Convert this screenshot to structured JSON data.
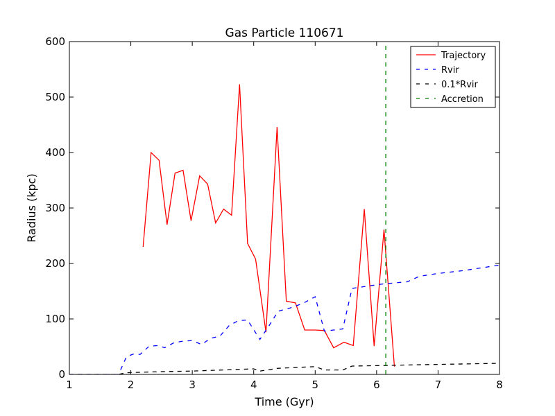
{
  "chart_data": {
    "type": "line",
    "title": "Gas Particle 110671",
    "xlabel": "Time (Gyr)",
    "ylabel": "Radius (kpc)",
    "xlim": [
      1,
      8
    ],
    "ylim": [
      0,
      600
    ],
    "xticks": [
      1,
      2,
      3,
      4,
      5,
      6,
      7,
      8
    ],
    "yticks": [
      0,
      100,
      200,
      300,
      400,
      500,
      600
    ],
    "grid": false,
    "legend_position": "top-right",
    "series": [
      {
        "name": "Trajectory",
        "color": "#ff0000",
        "style": "solid",
        "x": [
          2.2,
          2.33,
          2.46,
          2.59,
          2.72,
          2.85,
          2.98,
          3.12,
          3.25,
          3.38,
          3.51,
          3.64,
          3.77,
          3.9,
          4.03,
          4.2,
          4.38,
          4.53,
          4.68,
          4.83,
          5.0,
          5.15,
          5.3,
          5.47,
          5.62,
          5.8,
          5.96,
          6.12,
          6.29,
          6.45
        ],
        "y": [
          230,
          400,
          386,
          270,
          363,
          368,
          277,
          358,
          343,
          273,
          298,
          287,
          523,
          236,
          208,
          76,
          446,
          132,
          129,
          80,
          80,
          79,
          48,
          58,
          52,
          298,
          51,
          261,
          14,
          null
        ]
      },
      {
        "name": "Rvir",
        "color": "#0000ff",
        "style": "dashed",
        "x": [
          1.0,
          1.8,
          1.93,
          2.05,
          2.15,
          2.3,
          2.45,
          2.55,
          2.7,
          2.85,
          3.0,
          3.15,
          3.3,
          3.45,
          3.6,
          3.75,
          3.9,
          4.1,
          4.25,
          4.4,
          4.6,
          4.8,
          5.0,
          5.15,
          5.3,
          5.45,
          5.6,
          5.9,
          6.1,
          6.3,
          6.5,
          6.7,
          7.0,
          7.4,
          7.7,
          8.0
        ],
        "y": [
          0,
          0,
          32,
          37,
          36,
          51,
          52,
          48,
          57,
          60,
          61,
          54,
          65,
          69,
          88,
          97,
          98,
          63,
          88,
          114,
          120,
          128,
          140,
          78,
          80,
          82,
          155,
          160,
          163,
          165,
          167,
          177,
          182,
          187,
          192,
          197
        ]
      },
      {
        "name": "0.1*Rvir",
        "color": "#000000",
        "style": "dashed",
        "x": [
          1.0,
          1.8,
          1.93,
          2.2,
          2.5,
          3.0,
          3.5,
          4.0,
          4.1,
          4.4,
          5.0,
          5.15,
          5.45,
          5.6,
          6.1,
          6.5,
          7.0,
          8.0
        ],
        "y": [
          0,
          0,
          3,
          4,
          5,
          6,
          8,
          10,
          6,
          11,
          14,
          8,
          8,
          15,
          16,
          17,
          18,
          20
        ]
      },
      {
        "name": "Accretion",
        "color": "#008000",
        "style": "dashed",
        "x": [
          6.15,
          6.15
        ],
        "y": [
          0,
          600
        ]
      }
    ]
  }
}
